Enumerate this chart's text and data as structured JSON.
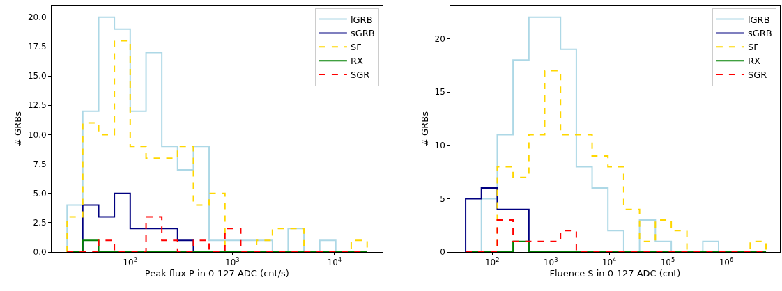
{
  "chart_data": [
    {
      "type": "histogram",
      "xlabel": "Peak flux P in 0-127 ADC (cnt/s)",
      "ylabel": "# GRBs",
      "log": "x",
      "legend": "top right",
      "bins": [
        24.1,
        34.3,
        49.1,
        70.0,
        100,
        143,
        204,
        291,
        416,
        593,
        847,
        1210,
        1730,
        2470,
        3520,
        5030,
        7180,
        10300,
        14600,
        20900
      ],
      "xlim": [
        17.0,
        29500
      ],
      "xticks": [
        {
          "value": 100,
          "label": "10$^{2}$"
        },
        {
          "value": 1000,
          "label": "10$^{3}$"
        },
        {
          "value": 10000,
          "label": "10$^{4}$"
        }
      ],
      "ylim": [
        0,
        21.0
      ],
      "yticks": [
        {
          "value": 0,
          "label": "0.0"
        },
        {
          "value": 2.5,
          "label": "2.5"
        },
        {
          "value": 5,
          "label": "5.0"
        },
        {
          "value": 7.5,
          "label": "7.5"
        },
        {
          "value": 10,
          "label": "10.0"
        },
        {
          "value": 12.5,
          "label": "12.5"
        },
        {
          "value": 15,
          "label": "15.0"
        },
        {
          "value": 17.5,
          "label": "17.5"
        },
        {
          "value": 20,
          "label": "20.0"
        }
      ],
      "series": [
        {
          "name": "lGRB",
          "color": "#add8e6",
          "line_style": "solid",
          "values": [
            4,
            12,
            20,
            19,
            12,
            17,
            9,
            7,
            9,
            1,
            1,
            1,
            1,
            0,
            2,
            0,
            1,
            0,
            0
          ]
        },
        {
          "name": "sGRB",
          "color": "#000080",
          "line_style": "solid",
          "values": [
            0,
            4,
            3,
            5,
            2,
            2,
            2,
            1,
            0,
            0,
            0,
            0,
            0,
            0,
            0,
            0,
            0,
            0,
            0
          ]
        },
        {
          "name": "SF",
          "color": "#ffd700",
          "line_style": "dashed",
          "values": [
            3,
            11,
            10,
            18,
            9,
            8,
            8,
            9,
            4,
            5,
            0,
            0,
            1,
            2,
            2,
            0,
            0,
            0,
            1
          ]
        },
        {
          "name": "RX",
          "color": "#008000",
          "line_style": "solid",
          "values": [
            0,
            1,
            0,
            0,
            0,
            0,
            0,
            0,
            0,
            0,
            0,
            0,
            0,
            0,
            0,
            0,
            0,
            0,
            0
          ]
        },
        {
          "name": "SGR",
          "color": "#ff0000",
          "line_style": "dashed",
          "values": [
            0,
            0,
            1,
            0,
            0,
            3,
            1,
            0,
            1,
            0,
            2,
            0,
            0,
            0,
            0,
            0,
            0,
            0,
            0
          ]
        }
      ]
    },
    {
      "type": "histogram",
      "xlabel": "Fluence S in 0-127 ADC (cnt)",
      "ylabel": "# GRBs",
      "log": "x",
      "legend": "top right",
      "bins": [
        35.1,
        65.3,
        122,
        227,
        423,
        788,
        1470,
        2740,
        5100,
        9500,
        17700,
        33000,
        61500,
        115000,
        213000,
        398000,
        741000,
        1380000,
        2570000,
        4790000
      ],
      "xlim": [
        19.3,
        8200000
      ],
      "xticks": [
        {
          "value": 100,
          "label": "10$^{2}$"
        },
        {
          "value": 1000,
          "label": "10$^{3}$"
        },
        {
          "value": 10000,
          "label": "10$^{4}$"
        },
        {
          "value": 100000,
          "label": "10$^{5}$"
        },
        {
          "value": 1000000,
          "label": "10$^{6}$"
        }
      ],
      "ylim": [
        0,
        23.1
      ],
      "yticks": [
        0,
        5,
        10,
        15,
        20
      ],
      "series": [
        {
          "name": "lGRB",
          "color": "#add8e6",
          "line_style": "solid",
          "values": [
            0,
            5,
            11,
            18,
            22,
            22,
            19,
            8,
            6,
            2,
            0,
            3,
            1,
            0,
            0,
            1,
            0,
            0,
            0
          ]
        },
        {
          "name": "sGRB",
          "color": "#000080",
          "line_style": "solid",
          "values": [
            5,
            6,
            4,
            4,
            0,
            0,
            0,
            0,
            0,
            0,
            0,
            0,
            0,
            0,
            0,
            0,
            0,
            0,
            0
          ]
        },
        {
          "name": "SF",
          "color": "#ffd700",
          "line_style": "dashed",
          "values": [
            0,
            0,
            8,
            7,
            11,
            17,
            11,
            11,
            9,
            8,
            4,
            1,
            3,
            2,
            0,
            0,
            0,
            0,
            1
          ]
        },
        {
          "name": "RX",
          "color": "#008000",
          "line_style": "solid",
          "values": [
            0,
            0,
            0,
            1,
            0,
            0,
            0,
            0,
            0,
            0,
            0,
            0,
            0,
            0,
            0,
            0,
            0,
            0,
            0
          ]
        },
        {
          "name": "SGR",
          "color": "#ff0000",
          "line_style": "dashed",
          "values": [
            0,
            0,
            3,
            1,
            1,
            1,
            2,
            0,
            0,
            0,
            0,
            0,
            0,
            0,
            0,
            0,
            0,
            0,
            0
          ]
        }
      ]
    }
  ]
}
